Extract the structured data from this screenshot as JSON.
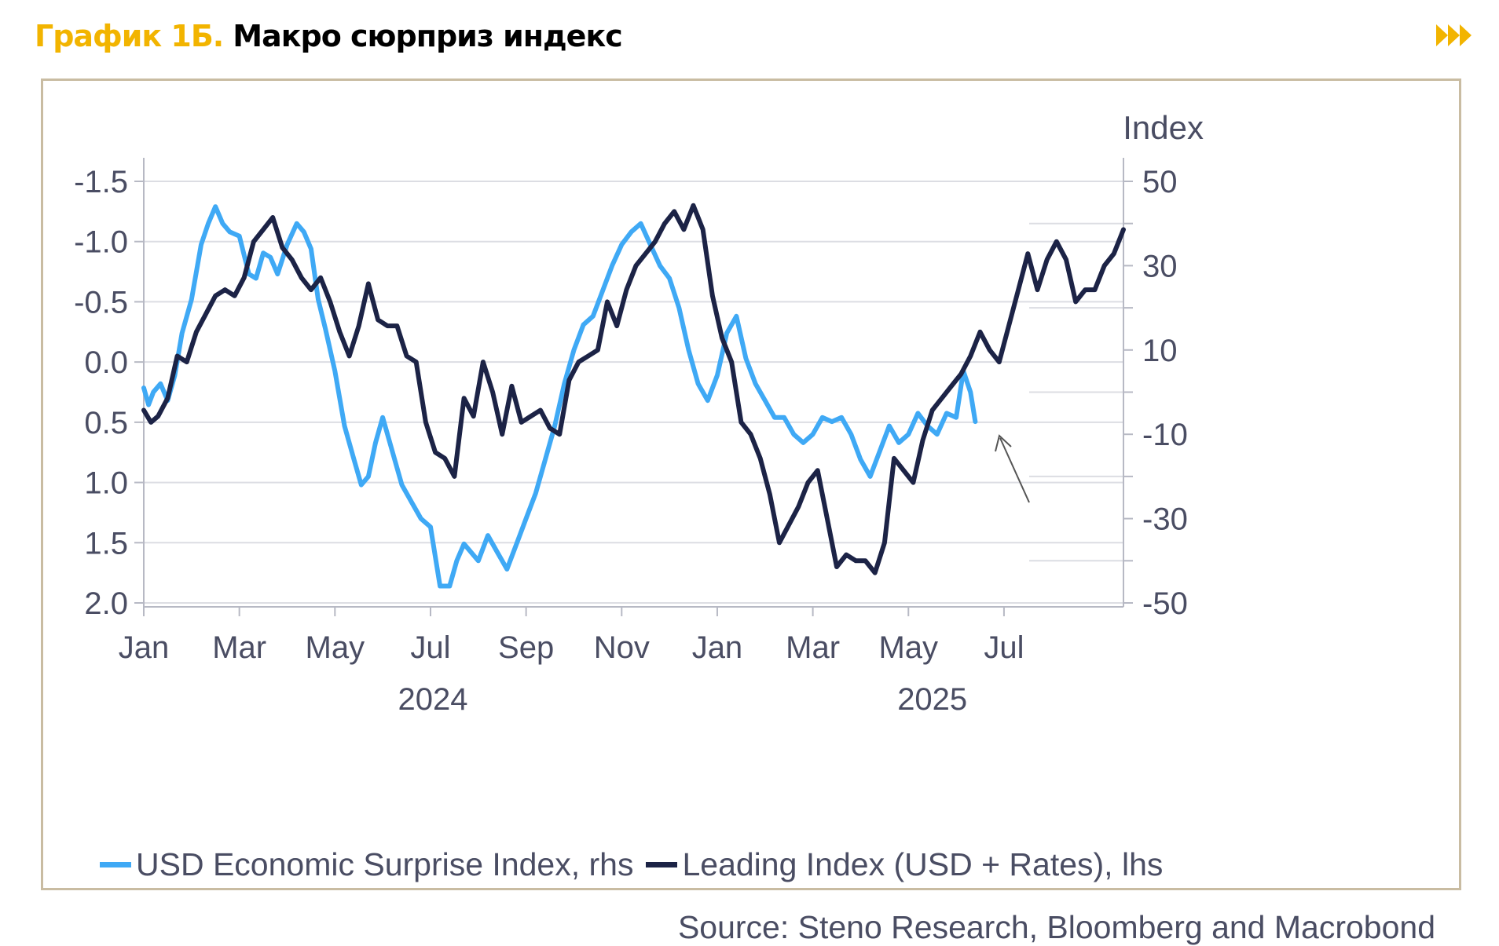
{
  "header": {
    "label": "График 1Б.",
    "title": "Макро сюрприз индекс",
    "label_color": "#f2b400",
    "icon": "fast-forward-icon"
  },
  "chart_data": {
    "type": "line",
    "y_right_title": "Index",
    "x_tick_labels": [
      "Jan",
      "Mar",
      "May",
      "Jul",
      "Sep",
      "Nov",
      "Jan",
      "Mar",
      "May",
      "Jul"
    ],
    "year_labels": [
      "2024",
      "2025"
    ],
    "x_range_months": [
      0,
      20.5
    ],
    "y_left": {
      "ticks": [
        -1.5,
        -1.0,
        -0.5,
        0.0,
        0.5,
        1.0,
        1.5,
        2.0
      ],
      "tick_labels": [
        "-1.5",
        "-1.0",
        "-0.5",
        "0.0",
        "0.5",
        "1.0",
        "1.5",
        "2.0"
      ],
      "range": [
        -1.5,
        2.0
      ],
      "inverted": true
    },
    "y_right": {
      "ticks": [
        50,
        30,
        10,
        -10,
        -30,
        -50
      ],
      "tick_labels": [
        "50",
        "30",
        "10",
        "-10",
        "-30",
        "-50"
      ],
      "range": [
        -50,
        50
      ]
    },
    "series": [
      {
        "name": "USD Economic Surprise Index, rhs",
        "axis": "right",
        "color": "#3fa9f5",
        "x": [
          0.0,
          0.1,
          0.2,
          0.35,
          0.5,
          0.65,
          0.8,
          1.0,
          1.2,
          1.35,
          1.5,
          1.65,
          1.8,
          2.0,
          2.2,
          2.35,
          2.5,
          2.65,
          2.8,
          3.0,
          3.2,
          3.35,
          3.5,
          3.65,
          3.8,
          4.0,
          4.2,
          4.4,
          4.55,
          4.7,
          4.85,
          5.0,
          5.2,
          5.4,
          5.6,
          5.8,
          6.0,
          6.2,
          6.4,
          6.55,
          6.7,
          6.85,
          7.0,
          7.2,
          7.4,
          7.6,
          7.8,
          8.0,
          8.2,
          8.4,
          8.6,
          8.8,
          9.0,
          9.2,
          9.4,
          9.6,
          9.8,
          10.0,
          10.2,
          10.4,
          10.6,
          10.8,
          11.0,
          11.2,
          11.4,
          11.6,
          11.8,
          12.0,
          12.2,
          12.4,
          12.6,
          12.8,
          13.0,
          13.2,
          13.4,
          13.6,
          13.8,
          14.0,
          14.2,
          14.4,
          14.6,
          14.8,
          15.0,
          15.2,
          15.4,
          15.6,
          15.8,
          16.0,
          16.2,
          16.4,
          16.6,
          16.8,
          17.0,
          17.15,
          17.3,
          17.4
        ],
        "values": [
          1,
          -3,
          0,
          2,
          -2,
          4,
          14,
          22,
          35,
          40,
          44,
          40,
          38,
          37,
          28,
          27,
          33,
          32,
          28,
          35,
          40,
          38,
          34,
          22,
          15,
          5,
          -8,
          -16,
          -22,
          -20,
          -12,
          -6,
          -14,
          -22,
          -26,
          -30,
          -32,
          -46,
          -46,
          -40,
          -36,
          -38,
          -40,
          -34,
          -38,
          -42,
          -36,
          -30,
          -24,
          -16,
          -8,
          2,
          10,
          16,
          18,
          24,
          30,
          35,
          38,
          40,
          35,
          30,
          27,
          20,
          10,
          2,
          -2,
          4,
          14,
          18,
          8,
          2,
          -2,
          -6,
          -6,
          -10,
          -12,
          -10,
          -6,
          -7,
          -6,
          -10,
          -16,
          -20,
          -14,
          -8,
          -12,
          -10,
          -5,
          -8,
          -10,
          -5,
          -6,
          5,
          0,
          -7
        ]
      },
      {
        "name": "Leading Index (USD + Rates), lhs",
        "axis": "left",
        "color": "#1c2346",
        "x": [
          0.0,
          0.15,
          0.3,
          0.5,
          0.7,
          0.9,
          1.1,
          1.3,
          1.5,
          1.7,
          1.9,
          2.1,
          2.3,
          2.5,
          2.7,
          2.9,
          3.1,
          3.3,
          3.5,
          3.7,
          3.9,
          4.1,
          4.3,
          4.5,
          4.7,
          4.9,
          5.1,
          5.3,
          5.5,
          5.7,
          5.9,
          6.1,
          6.3,
          6.5,
          6.7,
          6.9,
          7.1,
          7.3,
          7.5,
          7.7,
          7.9,
          8.1,
          8.3,
          8.5,
          8.7,
          8.9,
          9.1,
          9.3,
          9.5,
          9.7,
          9.9,
          10.1,
          10.3,
          10.5,
          10.7,
          10.9,
          11.1,
          11.3,
          11.5,
          11.7,
          11.9,
          12.1,
          12.3,
          12.5,
          12.7,
          12.9,
          13.1,
          13.3,
          13.5,
          13.7,
          13.9,
          14.1,
          14.3,
          14.5,
          14.7,
          14.9,
          15.1,
          15.3,
          15.5,
          15.7,
          15.9,
          16.1,
          16.3,
          16.5,
          16.7,
          16.9,
          17.1,
          17.3,
          17.5,
          17.7,
          17.9,
          18.1,
          18.3,
          18.5,
          18.7,
          18.9,
          19.1,
          19.3,
          19.5,
          19.7,
          19.9,
          20.1,
          20.3,
          20.5
        ],
        "values": [
          0.4,
          0.5,
          0.45,
          0.3,
          -0.05,
          0.0,
          -0.25,
          -0.4,
          -0.55,
          -0.6,
          -0.55,
          -0.7,
          -1.0,
          -1.1,
          -1.2,
          -0.95,
          -0.85,
          -0.7,
          -0.6,
          -0.7,
          -0.5,
          -0.25,
          -0.05,
          -0.3,
          -0.65,
          -0.35,
          -0.3,
          -0.3,
          -0.05,
          0.0,
          0.5,
          0.75,
          0.8,
          0.95,
          0.3,
          0.45,
          0.0,
          0.25,
          0.6,
          0.2,
          0.5,
          0.45,
          0.4,
          0.55,
          0.6,
          0.15,
          0.0,
          -0.05,
          -0.1,
          -0.5,
          -0.3,
          -0.6,
          -0.8,
          -0.9,
          -1.0,
          -1.15,
          -1.25,
          -1.1,
          -1.3,
          -1.1,
          -0.55,
          -0.2,
          0.0,
          0.5,
          0.6,
          0.8,
          1.1,
          1.5,
          1.35,
          1.2,
          1.0,
          0.9,
          1.3,
          1.7,
          1.6,
          1.65,
          1.65,
          1.75,
          1.5,
          0.8,
          0.9,
          1.0,
          0.65,
          0.4,
          0.3,
          0.2,
          0.1,
          -0.05,
          -0.25,
          -0.1,
          0.0,
          -0.3,
          -0.6,
          -0.9,
          -0.6,
          -0.85,
          -1.0,
          -0.85,
          -0.5,
          -0.6,
          -0.6,
          -0.8,
          -0.9,
          -1.1
        ]
      }
    ],
    "legend_position": "bottom-left",
    "annotation": "arrow pointing to the latest surprise-index reading"
  },
  "legend": [
    {
      "label": "USD Economic Surprise Index, rhs",
      "color": "#3fa9f5"
    },
    {
      "label": "Leading Index (USD + Rates), lhs",
      "color": "#1c2346"
    }
  ],
  "source": "Source: Steno Research, Bloomberg and Macrobond"
}
